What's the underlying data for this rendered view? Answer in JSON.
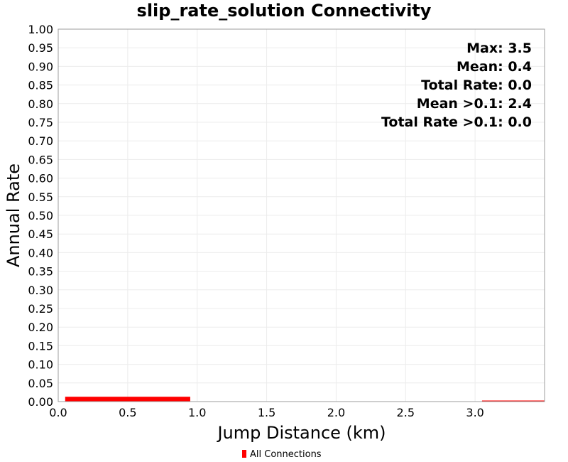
{
  "chart_data": {
    "type": "bar",
    "title": "slip_rate_solution Connectivity",
    "xlabel": "Jump Distance (km)",
    "ylabel": "Annual Rate",
    "xlim": [
      0,
      3.5
    ],
    "ylim": [
      0,
      1.0
    ],
    "xticks": [
      "0.0",
      "0.5",
      "1.0",
      "1.5",
      "2.0",
      "2.5",
      "3.0"
    ],
    "xtick_values": [
      0,
      0.5,
      1.0,
      1.5,
      2.0,
      2.5,
      3.0
    ],
    "yticks": [
      "0.00",
      "0.05",
      "0.10",
      "0.15",
      "0.20",
      "0.25",
      "0.30",
      "0.35",
      "0.40",
      "0.45",
      "0.50",
      "0.55",
      "0.60",
      "0.65",
      "0.70",
      "0.75",
      "0.80",
      "0.85",
      "0.90",
      "0.95",
      "1.00"
    ],
    "ytick_values": [
      0,
      0.05,
      0.1,
      0.15,
      0.2,
      0.25,
      0.3,
      0.35,
      0.4,
      0.45,
      0.5,
      0.55,
      0.6,
      0.65,
      0.7,
      0.75,
      0.8,
      0.85,
      0.9,
      0.95,
      1.0
    ],
    "series": [
      {
        "name": "All Connections",
        "color": "#ff0000",
        "bars": [
          {
            "x_start": 0.05,
            "x_end": 0.95,
            "value": 0.013
          },
          {
            "x_start": 3.05,
            "x_end": 3.5,
            "value": 0.001
          }
        ]
      }
    ],
    "annotations": [
      "Max: 3.5",
      "Mean: 0.4",
      "Total Rate: 0.0",
      "Mean >0.1: 2.4",
      "Total Rate >0.1: 0.0"
    ],
    "legend": {
      "label": "All Connections",
      "position": "bottom-center"
    },
    "grid": true
  }
}
